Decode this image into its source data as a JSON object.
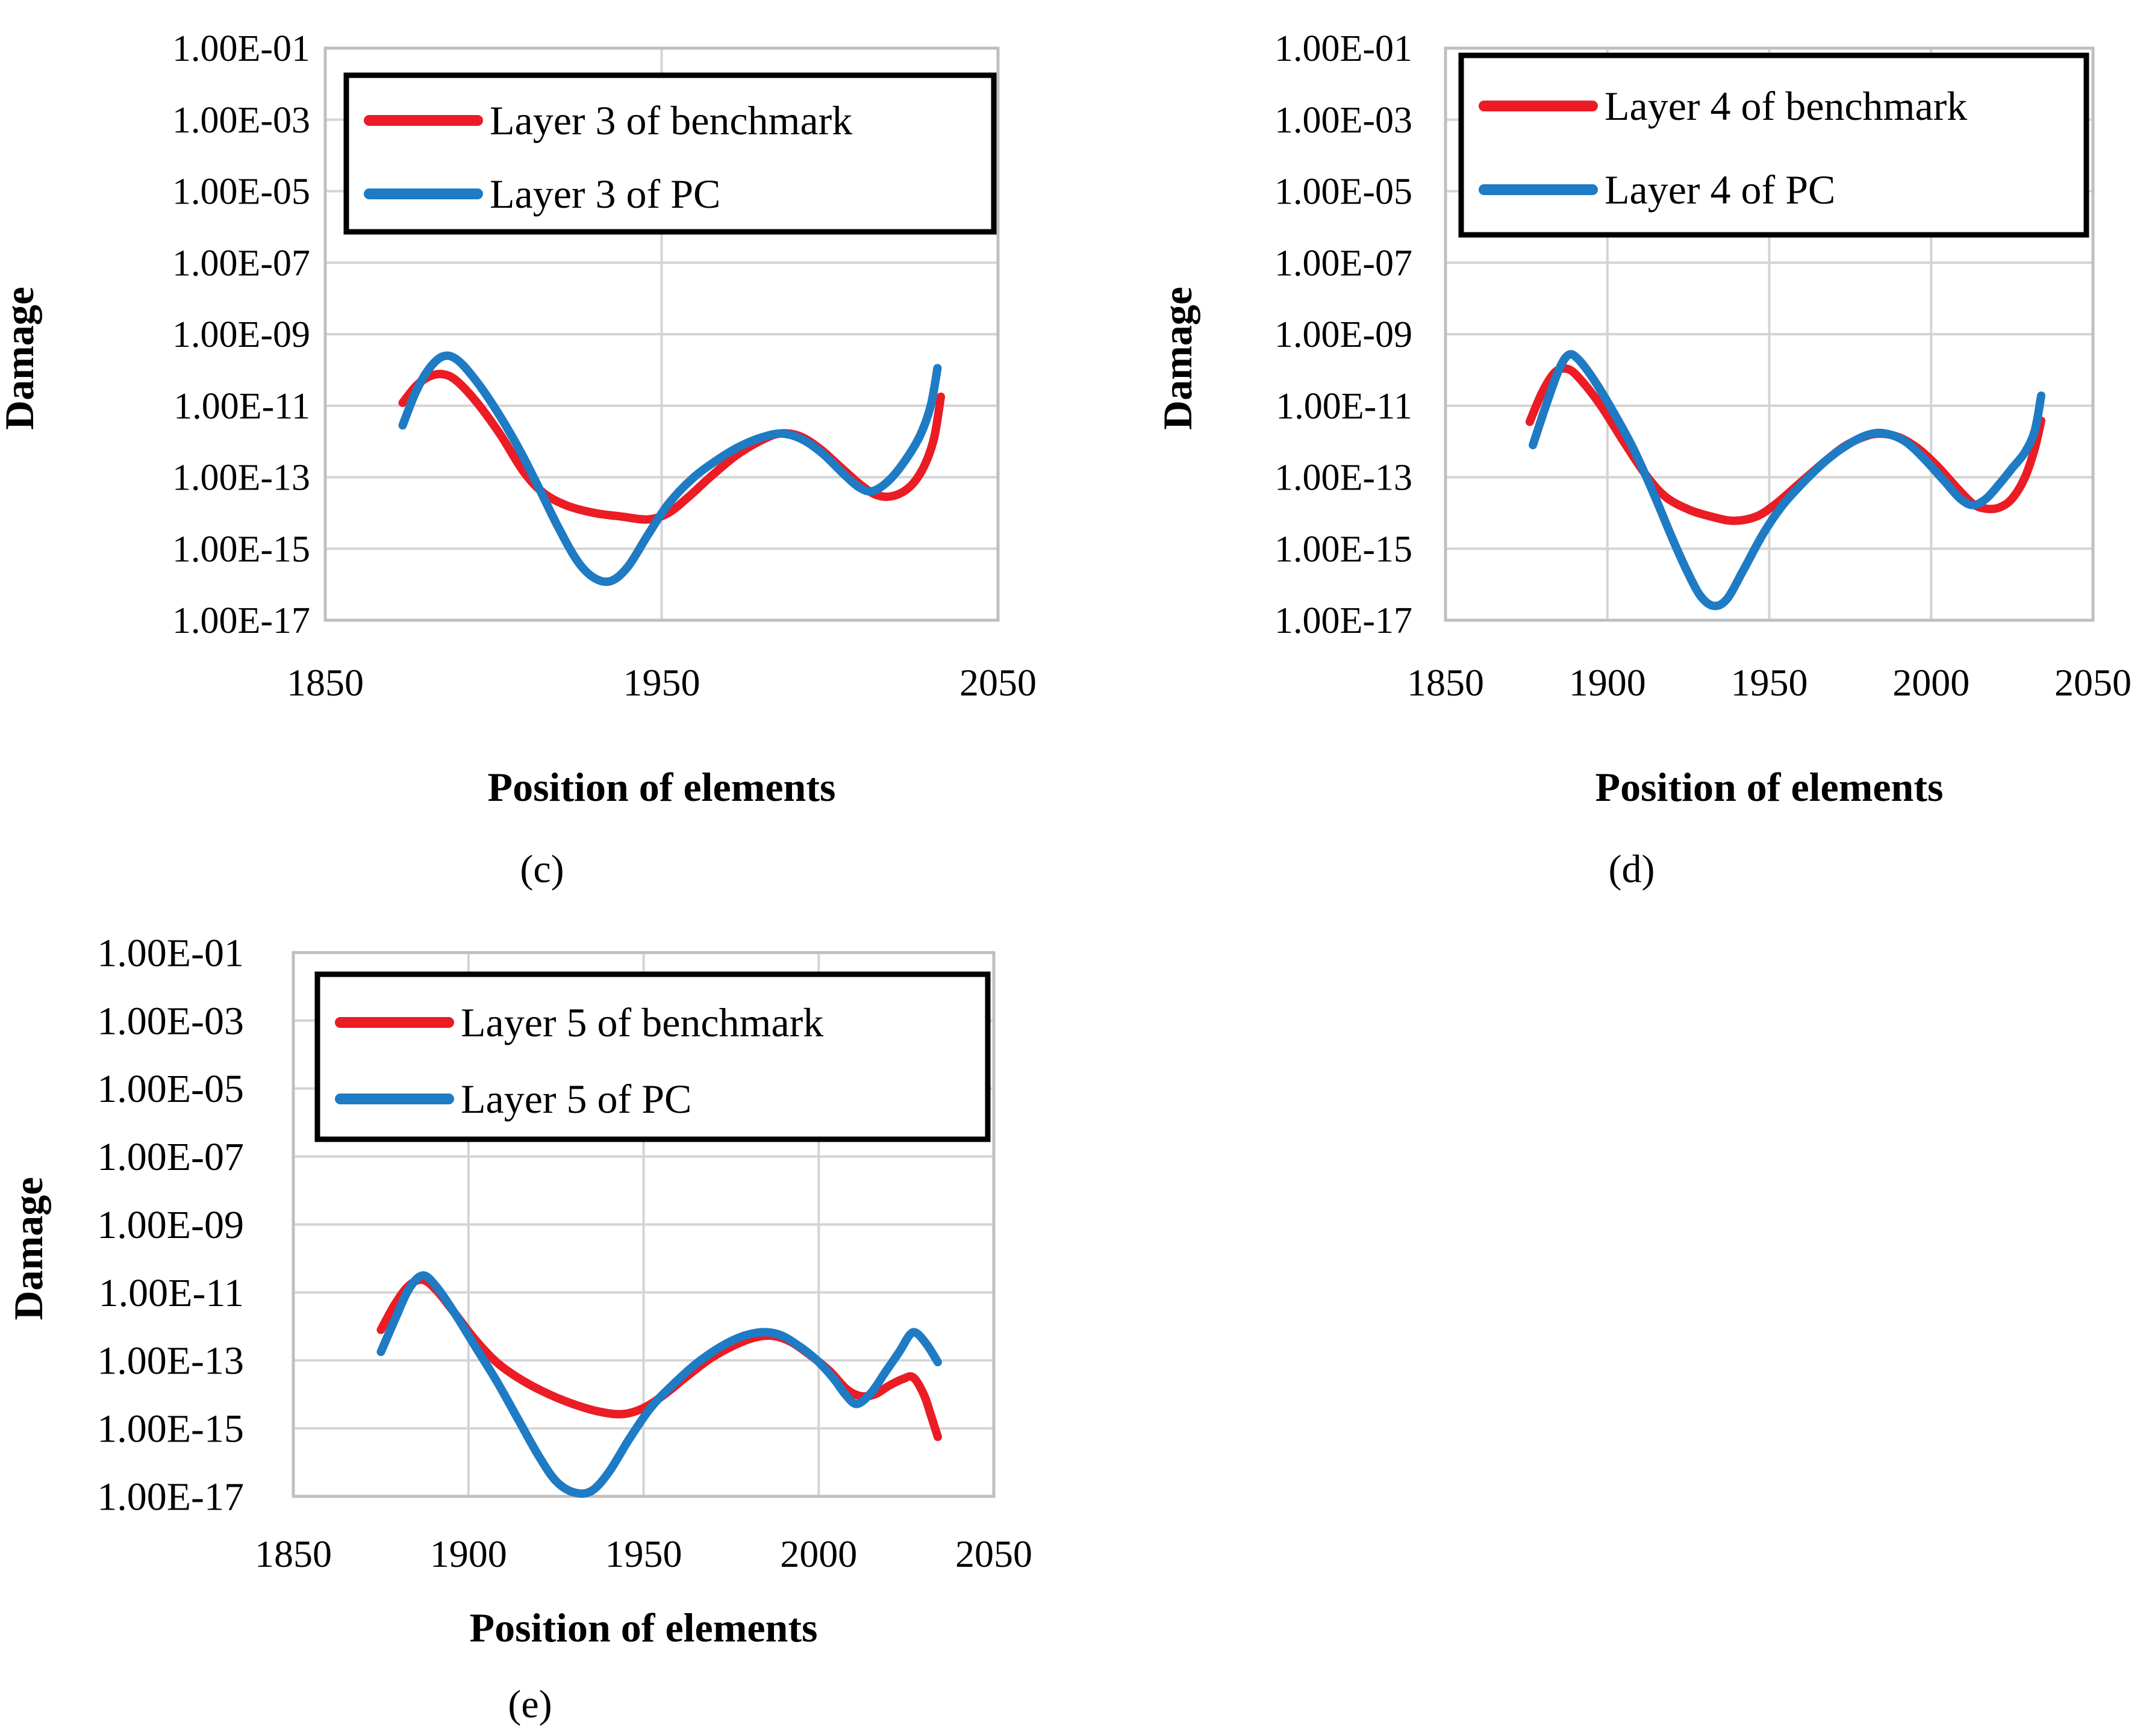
{
  "shared": {
    "ylabel": "Damage",
    "xlabel": "Position of elements",
    "y_tick_labels": [
      "1.00E-01",
      "1.00E-03",
      "1.00E-05",
      "1.00E-07",
      "1.00E-09",
      "1.00E-11",
      "1.00E-13",
      "1.00E-15",
      "1.00E-17"
    ],
    "colors": {
      "benchmark": "#EB1C24",
      "pc": "#1E7BC4",
      "gridline": "#D4D4D4",
      "frame": "#BFBFBF",
      "legend_border": "#000000",
      "text": "#000000",
      "background": "#FFFFFF"
    }
  },
  "chart_data": [
    {
      "id": "c",
      "type": "line",
      "caption": "(c)",
      "xlabel": "Position of elements",
      "ylabel": "Damage",
      "x_axis": {
        "min": 1850,
        "max": 2050,
        "tick_labels": [
          "1850",
          "1950",
          "2050"
        ],
        "tick_values": [
          1850,
          1950,
          2050
        ],
        "gridline_values": [
          1850,
          1950,
          2050
        ]
      },
      "y_axis": {
        "scale": "log",
        "max_exp": -1,
        "min_exp": -17,
        "tick_labels": [
          "1.00E-01",
          "1.00E-03",
          "1.00E-05",
          "1.00E-07",
          "1.00E-09",
          "1.00E-11",
          "1.00E-13",
          "1.00E-15",
          "1.00E-17"
        ],
        "gridline_step_decades": 2
      },
      "legend": {
        "entries": [
          {
            "label": "Layer 3 of benchmark",
            "color_key": "benchmark"
          },
          {
            "label": "Layer 3 of PC",
            "color_key": "pc"
          }
        ]
      },
      "series": [
        {
          "name": "Layer 3 of benchmark",
          "color_key": "benchmark",
          "points": [
            [
              1873,
              -10.92
            ],
            [
              1877,
              -10.45
            ],
            [
              1881,
              -10.18
            ],
            [
              1885,
              -10.12
            ],
            [
              1889,
              -10.3
            ],
            [
              1895,
              -10.9
            ],
            [
              1902,
              -11.8
            ],
            [
              1909,
              -12.85
            ],
            [
              1915,
              -13.45
            ],
            [
              1922,
              -13.8
            ],
            [
              1930,
              -14.0
            ],
            [
              1938,
              -14.1
            ],
            [
              1946,
              -14.18
            ],
            [
              1952,
              -14.0
            ],
            [
              1958,
              -13.55
            ],
            [
              1965,
              -12.95
            ],
            [
              1972,
              -12.4
            ],
            [
              1979,
              -12.0
            ],
            [
              1985,
              -11.78
            ],
            [
              1991,
              -11.85
            ],
            [
              1997,
              -12.2
            ],
            [
              2003,
              -12.7
            ],
            [
              2009,
              -13.2
            ],
            [
              2014,
              -13.5
            ],
            [
              2019,
              -13.52
            ],
            [
              2024,
              -13.25
            ],
            [
              2028,
              -12.7
            ],
            [
              2031,
              -11.9
            ],
            [
              2033,
              -10.75
            ]
          ]
        },
        {
          "name": "Layer 3 of PC",
          "color_key": "pc",
          "points": [
            [
              1873,
              -11.55
            ],
            [
              1877,
              -10.6
            ],
            [
              1881,
              -9.95
            ],
            [
              1885,
              -9.62
            ],
            [
              1889,
              -9.7
            ],
            [
              1894,
              -10.2
            ],
            [
              1900,
              -11.0
            ],
            [
              1907,
              -12.1
            ],
            [
              1913,
              -13.2
            ],
            [
              1919,
              -14.35
            ],
            [
              1925,
              -15.35
            ],
            [
              1930,
              -15.82
            ],
            [
              1935,
              -15.9
            ],
            [
              1940,
              -15.5
            ],
            [
              1946,
              -14.6
            ],
            [
              1952,
              -13.75
            ],
            [
              1959,
              -13.05
            ],
            [
              1966,
              -12.55
            ],
            [
              1973,
              -12.15
            ],
            [
              1980,
              -11.88
            ],
            [
              1986,
              -11.78
            ],
            [
              1992,
              -11.95
            ],
            [
              1998,
              -12.35
            ],
            [
              2004,
              -12.9
            ],
            [
              2009,
              -13.3
            ],
            [
              2013,
              -13.38
            ],
            [
              2018,
              -13.05
            ],
            [
              2023,
              -12.45
            ],
            [
              2027,
              -11.8
            ],
            [
              2030,
              -11.0
            ],
            [
              2032,
              -9.95
            ]
          ]
        }
      ]
    },
    {
      "id": "d",
      "type": "line",
      "caption": "(d)",
      "xlabel": "Position of elements",
      "ylabel": "Damage",
      "x_axis": {
        "min": 1850,
        "max": 2050,
        "tick_labels": [
          "1850",
          "1900",
          "1950",
          "2000",
          "2050"
        ],
        "tick_values": [
          1850,
          1900,
          1950,
          2000,
          2050
        ],
        "gridline_values": [
          1850,
          1900,
          1950,
          2000,
          2050
        ]
      },
      "y_axis": {
        "scale": "log",
        "max_exp": -1,
        "min_exp": -17,
        "tick_labels": [
          "1.00E-01",
          "1.00E-03",
          "1.00E-05",
          "1.00E-07",
          "1.00E-09",
          "1.00E-11",
          "1.00E-13",
          "1.00E-15",
          "1.00E-17"
        ],
        "gridline_step_decades": 2
      },
      "legend": {
        "entries": [
          {
            "label": "Layer 4 of benchmark",
            "color_key": "benchmark"
          },
          {
            "label": "Layer 4 of PC",
            "color_key": "pc"
          }
        ]
      },
      "series": [
        {
          "name": "Layer 4 of benchmark",
          "color_key": "benchmark",
          "points": [
            [
              1876,
              -11.45
            ],
            [
              1880,
              -10.6
            ],
            [
              1884,
              -10.05
            ],
            [
              1888,
              -9.98
            ],
            [
              1892,
              -10.3
            ],
            [
              1898,
              -11.0
            ],
            [
              1905,
              -12.0
            ],
            [
              1912,
              -12.95
            ],
            [
              1918,
              -13.55
            ],
            [
              1925,
              -13.9
            ],
            [
              1932,
              -14.1
            ],
            [
              1939,
              -14.22
            ],
            [
              1946,
              -14.1
            ],
            [
              1952,
              -13.75
            ],
            [
              1959,
              -13.2
            ],
            [
              1966,
              -12.65
            ],
            [
              1973,
              -12.15
            ],
            [
              1979,
              -11.88
            ],
            [
              1984,
              -11.78
            ],
            [
              1990,
              -11.88
            ],
            [
              1996,
              -12.2
            ],
            [
              2002,
              -12.7
            ],
            [
              2008,
              -13.3
            ],
            [
              2013,
              -13.75
            ],
            [
              2017,
              -13.88
            ],
            [
              2021,
              -13.85
            ],
            [
              2025,
              -13.6
            ],
            [
              2029,
              -13.0
            ],
            [
              2032,
              -12.2
            ],
            [
              2034,
              -11.42
            ]
          ]
        },
        {
          "name": "Layer 4 of PC",
          "color_key": "pc",
          "points": [
            [
              1877,
              -12.1
            ],
            [
              1881,
              -11.0
            ],
            [
              1885,
              -10.0
            ],
            [
              1888,
              -9.58
            ],
            [
              1891,
              -9.7
            ],
            [
              1896,
              -10.3
            ],
            [
              1902,
              -11.2
            ],
            [
              1908,
              -12.2
            ],
            [
              1914,
              -13.4
            ],
            [
              1920,
              -14.7
            ],
            [
              1925,
              -15.7
            ],
            [
              1929,
              -16.35
            ],
            [
              1933,
              -16.6
            ],
            [
              1937,
              -16.4
            ],
            [
              1942,
              -15.6
            ],
            [
              1948,
              -14.6
            ],
            [
              1954,
              -13.8
            ],
            [
              1961,
              -13.1
            ],
            [
              1968,
              -12.5
            ],
            [
              1975,
              -12.05
            ],
            [
              1981,
              -11.8
            ],
            [
              1986,
              -11.78
            ],
            [
              1992,
              -12.0
            ],
            [
              1998,
              -12.5
            ],
            [
              2004,
              -13.1
            ],
            [
              2009,
              -13.6
            ],
            [
              2013,
              -13.78
            ],
            [
              2017,
              -13.6
            ],
            [
              2021,
              -13.2
            ],
            [
              2025,
              -12.75
            ],
            [
              2029,
              -12.3
            ],
            [
              2032,
              -11.7
            ],
            [
              2034,
              -10.72
            ]
          ]
        }
      ]
    },
    {
      "id": "e",
      "type": "line",
      "caption": "(e)",
      "xlabel": "Position of elements",
      "ylabel": "Damage",
      "x_axis": {
        "min": 1850,
        "max": 2050,
        "tick_labels": [
          "1850",
          "1900",
          "1950",
          "2000",
          "2050"
        ],
        "tick_values": [
          1850,
          1900,
          1950,
          2000,
          2050
        ],
        "gridline_values": [
          1850,
          1900,
          1950,
          2000,
          2050
        ]
      },
      "y_axis": {
        "scale": "log",
        "max_exp": -1,
        "min_exp": -17,
        "tick_labels": [
          "1.00E-01",
          "1.00E-03",
          "1.00E-05",
          "1.00E-07",
          "1.00E-09",
          "1.00E-11",
          "1.00E-13",
          "1.00E-15",
          "1.00E-17"
        ],
        "gridline_step_decades": 2
      },
      "legend": {
        "entries": [
          {
            "label": "Layer 5 of benchmark",
            "color_key": "benchmark"
          },
          {
            "label": "Layer 5 of PC",
            "color_key": "pc"
          }
        ]
      },
      "series": [
        {
          "name": "Layer 5 of benchmark",
          "color_key": "benchmark",
          "points": [
            [
              1875,
              -12.1
            ],
            [
              1879,
              -11.35
            ],
            [
              1883,
              -10.8
            ],
            [
              1887,
              -10.63
            ],
            [
              1891,
              -10.95
            ],
            [
              1896,
              -11.6
            ],
            [
              1902,
              -12.4
            ],
            [
              1908,
              -13.05
            ],
            [
              1914,
              -13.5
            ],
            [
              1921,
              -13.9
            ],
            [
              1929,
              -14.25
            ],
            [
              1937,
              -14.5
            ],
            [
              1944,
              -14.58
            ],
            [
              1950,
              -14.4
            ],
            [
              1956,
              -14.0
            ],
            [
              1962,
              -13.5
            ],
            [
              1969,
              -12.95
            ],
            [
              1976,
              -12.55
            ],
            [
              1982,
              -12.32
            ],
            [
              1987,
              -12.28
            ],
            [
              1992,
              -12.45
            ],
            [
              1997,
              -12.8
            ],
            [
              2003,
              -13.3
            ],
            [
              2008,
              -13.85
            ],
            [
              2012,
              -14.05
            ],
            [
              2016,
              -14.0
            ],
            [
              2020,
              -13.75
            ],
            [
              2024,
              -13.55
            ],
            [
              2027,
              -13.5
            ],
            [
              2030,
              -14.0
            ],
            [
              2032,
              -14.6
            ],
            [
              2034,
              -15.25
            ]
          ]
        },
        {
          "name": "Layer 5 of PC",
          "color_key": "pc",
          "points": [
            [
              1875,
              -12.75
            ],
            [
              1879,
              -11.8
            ],
            [
              1883,
              -10.9
            ],
            [
              1887,
              -10.5
            ],
            [
              1891,
              -10.85
            ],
            [
              1896,
              -11.6
            ],
            [
              1902,
              -12.6
            ],
            [
              1908,
              -13.6
            ],
            [
              1914,
              -14.7
            ],
            [
              1920,
              -15.8
            ],
            [
              1925,
              -16.55
            ],
            [
              1930,
              -16.88
            ],
            [
              1935,
              -16.85
            ],
            [
              1940,
              -16.3
            ],
            [
              1946,
              -15.3
            ],
            [
              1952,
              -14.4
            ],
            [
              1958,
              -13.75
            ],
            [
              1965,
              -13.1
            ],
            [
              1972,
              -12.6
            ],
            [
              1978,
              -12.3
            ],
            [
              1984,
              -12.17
            ],
            [
              1989,
              -12.25
            ],
            [
              1994,
              -12.55
            ],
            [
              1999,
              -12.95
            ],
            [
              2004,
              -13.5
            ],
            [
              2008,
              -14.05
            ],
            [
              2011,
              -14.28
            ],
            [
              2015,
              -13.95
            ],
            [
              2019,
              -13.35
            ],
            [
              2023,
              -12.75
            ],
            [
              2026,
              -12.25
            ],
            [
              2028,
              -12.2
            ],
            [
              2031,
              -12.55
            ],
            [
              2034,
              -13.05
            ]
          ]
        }
      ]
    }
  ]
}
